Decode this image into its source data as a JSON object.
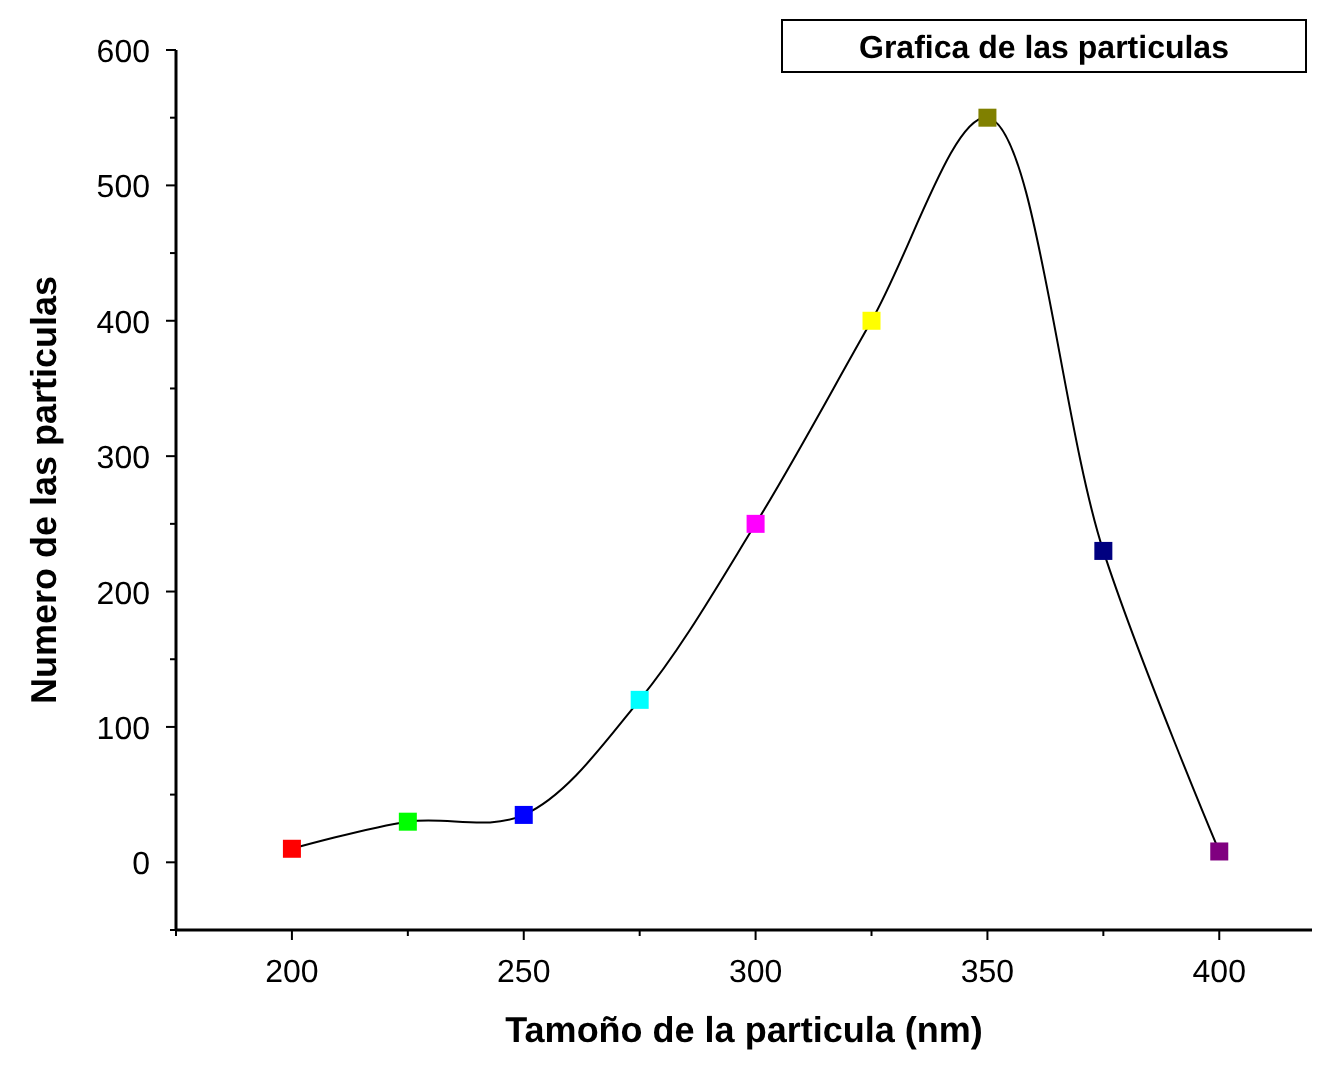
{
  "chart_data": {
    "type": "line",
    "title": "Grafica de las particulas",
    "xlabel": "Tamoño de la particula (nm)",
    "ylabel": "Numero de las particulas",
    "x": [
      200,
      225,
      250,
      275,
      300,
      325,
      350,
      375,
      400
    ],
    "series": [
      {
        "color": "#000000",
        "colors": [
          "#ff0000",
          "#00ff00",
          "#0000ff",
          "#00ffff",
          "#ff00ff",
          "#ffff00",
          "#808000",
          "#000080",
          "#800080"
        ],
        "values": [
          10,
          30,
          35,
          120,
          250,
          400,
          550,
          230,
          8
        ]
      }
    ],
    "marker": "square",
    "line_style": "solid",
    "grid": false,
    "xlim": [
      175,
      420
    ],
    "xticks": [
      {
        "value": 175,
        "label": null
      },
      200,
      {
        "value": 225,
        "label": null
      },
      250,
      {
        "value": 275,
        "label": null
      },
      300,
      {
        "value": 325,
        "label": null
      },
      350,
      {
        "value": 375,
        "label": null
      },
      400
    ],
    "ylim": [
      -50,
      600
    ],
    "yticks": [
      {
        "value": -50,
        "label": null
      },
      0,
      {
        "value": 50,
        "label": null
      },
      100,
      {
        "value": 150,
        "label": null
      },
      200,
      {
        "value": 250,
        "label": null
      },
      300,
      {
        "value": 350,
        "label": null
      },
      400,
      {
        "value": 450,
        "label": null
      },
      500,
      {
        "value": 550,
        "label": null
      },
      600
    ]
  }
}
